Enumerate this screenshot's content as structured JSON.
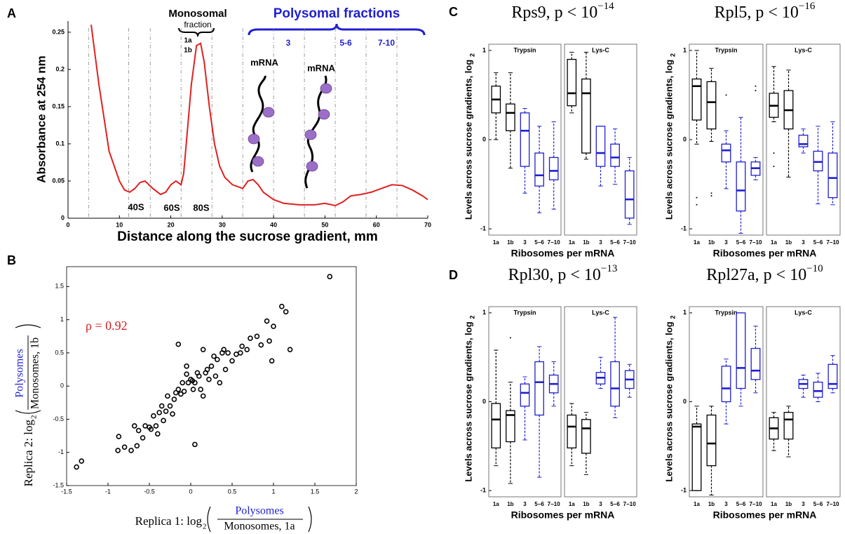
{
  "chart_data": [
    {
      "type": "line",
      "panel_label": "A",
      "x_label": "Distance along the sucrose gradient, mm",
      "y_label": "Absorbance at 254 nm",
      "xlim": [
        0,
        70
      ],
      "ylim": [
        0,
        0.265
      ],
      "xticks": [
        0,
        10,
        20,
        30,
        40,
        50,
        60,
        70
      ],
      "yticks": [
        0,
        0.05,
        0.1,
        0.15,
        0.2,
        0.25
      ],
      "color": "#e02020",
      "fraction_boundaries": [
        4,
        11.8,
        16,
        22,
        28,
        34,
        40,
        46,
        52,
        58,
        64
      ],
      "x": [
        4.5,
        6,
        8,
        10,
        11,
        12,
        13,
        14,
        15,
        16.5,
        18,
        19,
        20,
        21,
        22,
        22.5,
        23,
        24,
        25,
        25.8,
        26.5,
        27.5,
        28.5,
        29.5,
        30.5,
        32,
        34,
        35,
        36,
        37,
        38,
        40,
        42,
        45,
        48,
        50,
        52,
        53.5,
        55,
        57,
        59,
        61,
        63,
        65,
        67,
        69,
        70
      ],
      "values": [
        0.26,
        0.18,
        0.09,
        0.05,
        0.038,
        0.035,
        0.04,
        0.048,
        0.05,
        0.04,
        0.032,
        0.035,
        0.045,
        0.05,
        0.045,
        0.06,
        0.1,
        0.18,
        0.232,
        0.235,
        0.21,
        0.15,
        0.1,
        0.07,
        0.055,
        0.045,
        0.04,
        0.05,
        0.052,
        0.045,
        0.035,
        0.025,
        0.02,
        0.018,
        0.018,
        0.02,
        0.017,
        0.022,
        0.03,
        0.032,
        0.035,
        0.04,
        0.045,
        0.044,
        0.038,
        0.03,
        0.025
      ],
      "annotations": [
        "Monosomal",
        "fraction",
        "1a",
        "1b",
        "40S",
        "60S",
        "80S",
        "Polysomal fractions",
        "3",
        "5-6",
        "7-10",
        "mRNA",
        "mRNA"
      ]
    },
    {
      "type": "scatter",
      "panel_label": "B",
      "x_label": "Replica 1: log",
      "x_label_sub": "2",
      "x_label_num": "Polysomes",
      "x_label_den": "Monosomes, 1a",
      "y_label": "Replica 2: log",
      "y_label_sub": "2",
      "y_label_num": "Polysomes",
      "y_label_den": "Monosomes, 1b",
      "annotation": "ρ = 0.92",
      "xlim": [
        -1.5,
        2
      ],
      "ylim": [
        -1.5,
        1.8
      ],
      "xticks": [
        -1.5,
        -1,
        -0.5,
        0,
        0.5,
        1,
        1.5,
        2
      ],
      "yticks": [
        -1.5,
        -1,
        -0.5,
        0,
        0.5,
        1,
        1.5
      ],
      "x": [
        -1.38,
        -1.32,
        -0.88,
        -0.87,
        -0.8,
        -0.72,
        -0.68,
        -0.65,
        -0.63,
        -0.58,
        -0.55,
        -0.5,
        -0.48,
        -0.45,
        -0.42,
        -0.4,
        -0.38,
        -0.35,
        -0.33,
        -0.3,
        -0.28,
        -0.25,
        -0.22,
        -0.2,
        -0.18,
        -0.15,
        -0.15,
        -0.12,
        -0.1,
        -0.08,
        -0.05,
        -0.05,
        -0.03,
        0,
        0.02,
        0.03,
        0.05,
        0.05,
        0.08,
        0.1,
        0.12,
        0.15,
        0.15,
        0.18,
        0.2,
        0.22,
        0.25,
        0.28,
        0.3,
        0.32,
        0.35,
        0.38,
        0.4,
        0.42,
        0.45,
        0.5,
        0.55,
        0.6,
        0.62,
        0.68,
        0.72,
        0.8,
        0.85,
        0.92,
        0.95,
        0.98,
        1.0,
        1.1,
        1.15,
        1.2,
        1.68
      ],
      "values": [
        -1.22,
        -1.13,
        -0.97,
        -0.76,
        -0.92,
        -0.97,
        -0.6,
        -0.9,
        -0.67,
        -0.78,
        -0.6,
        -0.62,
        -0.65,
        -0.45,
        -0.6,
        -0.72,
        -0.4,
        -0.3,
        -0.52,
        -0.38,
        -0.15,
        -0.3,
        -0.42,
        -0.2,
        -0.1,
        0.63,
        -0.05,
        -0.12,
        0.05,
        -0.08,
        0.3,
        0.18,
        0.05,
        0.1,
        0.08,
        -0.05,
        0.05,
        -0.88,
        0.2,
        0.15,
        -0.05,
        -0.15,
        0.55,
        0.2,
        0.25,
        0.1,
        0.3,
        0.45,
        0.15,
        0.4,
        0.05,
        0.5,
        0.55,
        0.25,
        0.5,
        0.38,
        0.48,
        0.5,
        0.6,
        0.55,
        0.72,
        0.75,
        0.62,
        0.98,
        0.68,
        0.38,
        0.9,
        1.2,
        1.12,
        0.55,
        1.65
      ]
    },
    {
      "type": "box",
      "panel_label": "C",
      "title": "Rps9, p < 10",
      "title_exponent": "−14",
      "y_label": "Levels across sucrose gradients, log",
      "y_label_sub": "2",
      "x_label": "Ribosomes per mRNA",
      "ylim": [
        -1.07,
        1.07
      ],
      "yticks": [
        -1,
        0,
        1
      ],
      "categories": [
        "1a",
        "1b",
        "3",
        "5−6",
        "7−10"
      ],
      "box_colors": [
        "#000000",
        "#000000",
        "#1f1fd0",
        "#1f1fd0",
        "#1f1fd0"
      ],
      "subpanels": [
        {
          "name": "Trypsin",
          "boxes": [
            {
              "low": 0.0,
              "q1": 0.3,
              "median": 0.45,
              "q3": 0.6,
              "high": 0.75
            },
            {
              "low": -0.32,
              "q1": 0.1,
              "median": 0.3,
              "q3": 0.4,
              "high": 0.75
            },
            {
              "low": -0.6,
              "q1": -0.3,
              "median": 0.1,
              "q3": 0.3,
              "high": 0.35
            },
            {
              "low": -0.82,
              "q1": -0.52,
              "median": -0.4,
              "q3": -0.15,
              "high": 0.15
            },
            {
              "low": -0.78,
              "q1": -0.45,
              "median": -0.35,
              "q3": -0.2,
              "high": 0.2
            }
          ]
        },
        {
          "name": "Lys-C",
          "boxes": [
            {
              "low": 0.3,
              "q1": 0.38,
              "median": 0.52,
              "q3": 0.9,
              "high": 0.98
            },
            {
              "low": -0.22,
              "q1": -0.15,
              "median": 0.52,
              "q3": 0.68,
              "high": 0.98
            },
            {
              "low": -0.52,
              "q1": -0.3,
              "median": -0.15,
              "q3": 0.15,
              "high": 0.15
            },
            {
              "low": -0.5,
              "q1": -0.3,
              "median": -0.2,
              "q3": -0.05,
              "high": 0.12
            },
            {
              "low": -0.95,
              "q1": -0.88,
              "median": -0.67,
              "q3": -0.35,
              "high": -0.2
            }
          ]
        }
      ]
    },
    {
      "type": "box",
      "title": "Rpl5, p < 10",
      "title_exponent": "−16",
      "y_label": "Levels across sucrose gradients, log",
      "y_label_sub": "2",
      "x_label": "Ribosomes per mRNA",
      "ylim": [
        -1.07,
        1.07
      ],
      "yticks": [
        -1,
        0,
        1
      ],
      "categories": [
        "1a",
        "1b",
        "3",
        "5−6",
        "7−10"
      ],
      "box_colors": [
        "#000000",
        "#000000",
        "#1f1fd0",
        "#1f1fd0",
        "#1f1fd0"
      ],
      "subpanels": [
        {
          "name": "Trypsin",
          "boxes": [
            {
              "low": -0.05,
              "q1": 0.22,
              "median": 0.6,
              "q3": 0.68,
              "high": 1.0,
              "outliers": [
                -0.65,
                -0.73
              ]
            },
            {
              "low": -0.02,
              "q1": 0.12,
              "median": 0.42,
              "q3": 0.65,
              "high": 0.8,
              "outliers": [
                -0.6,
                -0.63
              ]
            },
            {
              "low": -0.55,
              "q1": -0.25,
              "median": -0.12,
              "q3": -0.05,
              "high": 0.1,
              "outliers": [
                0.5
              ]
            },
            {
              "low": -1.05,
              "q1": -0.8,
              "median": -0.57,
              "q3": -0.25,
              "high": 0.25
            },
            {
              "low": -0.45,
              "q1": -0.4,
              "median": -0.32,
              "q3": -0.25,
              "high": -0.2,
              "outliers": [
                0.55,
                0.6
              ]
            }
          ]
        },
        {
          "name": "Lys-C",
          "boxes": [
            {
              "low": 0.2,
              "q1": 0.25,
              "median": 0.38,
              "q3": 0.52,
              "high": 0.82,
              "outliers": [
                -0.15,
                -0.3
              ]
            },
            {
              "low": -0.42,
              "q1": 0.12,
              "median": 0.33,
              "q3": 0.55,
              "high": 0.78
            },
            {
              "low": -0.15,
              "q1": -0.08,
              "median": -0.05,
              "q3": 0.05,
              "high": 0.12
            },
            {
              "low": -0.72,
              "q1": -0.35,
              "median": -0.25,
              "q3": -0.13,
              "high": 0.15
            },
            {
              "low": -0.73,
              "q1": -0.65,
              "median": -0.43,
              "q3": -0.15,
              "high": 0.2
            }
          ]
        }
      ]
    },
    {
      "type": "box",
      "panel_label": "D",
      "title": "Rpl30, p < 10",
      "title_exponent": "−13",
      "y_label": "Levels across sucrose gradients, log",
      "y_label_sub": "2",
      "x_label": "Ribosomes per mRNA",
      "ylim": [
        -1.07,
        1.07
      ],
      "yticks": [
        -1,
        0,
        1
      ],
      "categories": [
        "1a",
        "1b",
        "3",
        "5−6",
        "7−10"
      ],
      "box_colors": [
        "#000000",
        "#000000",
        "#1f1fd0",
        "#1f1fd0",
        "#1f1fd0"
      ],
      "subpanels": [
        {
          "name": "Trypsin",
          "boxes": [
            {
              "low": -0.72,
              "q1": -0.52,
              "median": -0.2,
              "q3": -0.02,
              "high": 0.58
            },
            {
              "low": -0.92,
              "q1": -0.45,
              "median": -0.15,
              "q3": -0.1,
              "high": 0.22,
              "outliers": [
                0.72
              ]
            },
            {
              "low": -0.43,
              "q1": -0.05,
              "median": 0.1,
              "q3": 0.2,
              "high": 0.28
            },
            {
              "low": -0.85,
              "q1": -0.15,
              "median": 0.22,
              "q3": 0.45,
              "high": 0.62
            },
            {
              "low": -0.05,
              "q1": 0.1,
              "median": 0.2,
              "q3": 0.3,
              "high": 0.45
            }
          ]
        },
        {
          "name": "Lys-C",
          "boxes": [
            {
              "low": -0.72,
              "q1": -0.52,
              "median": -0.28,
              "q3": -0.15,
              "high": -0.02
            },
            {
              "low": -0.82,
              "q1": -0.58,
              "median": -0.3,
              "q3": -0.2,
              "high": -0.12
            },
            {
              "low": 0.15,
              "q1": 0.2,
              "median": 0.27,
              "q3": 0.33,
              "high": 0.5
            },
            {
              "low": -0.18,
              "q1": -0.05,
              "median": 0.15,
              "q3": 0.45,
              "high": 0.95
            },
            {
              "low": 0.05,
              "q1": 0.15,
              "median": 0.25,
              "q3": 0.35,
              "high": 0.42
            }
          ]
        }
      ]
    },
    {
      "type": "box",
      "title": "Rpl27a, p < 10",
      "title_exponent": "−10",
      "y_label": "Levels across sucrose gradients, log",
      "y_label_sub": "2",
      "x_label": "Ribosomes per mRNA",
      "ylim": [
        -1.07,
        1.07
      ],
      "yticks": [
        -1,
        0,
        1
      ],
      "categories": [
        "1a",
        "1b",
        "3",
        "5−6",
        "7−10"
      ],
      "box_colors": [
        "#000000",
        "#000000",
        "#1f1fd0",
        "#1f1fd0",
        "#1f1fd0"
      ],
      "subpanels": [
        {
          "name": "Trypsin",
          "boxes": [
            {
              "low": -1.0,
              "q1": -1.0,
              "median": -0.28,
              "q3": -0.25,
              "high": -0.05
            },
            {
              "low": -1.05,
              "q1": -0.72,
              "median": -0.47,
              "q3": -0.15,
              "high": -0.05
            },
            {
              "low": -0.25,
              "q1": 0.0,
              "median": 0.15,
              "q3": 0.4,
              "high": 0.48
            },
            {
              "low": -0.05,
              "q1": 0.15,
              "median": 0.38,
              "q3": 1.0,
              "high": 1.0
            },
            {
              "low": 0.1,
              "q1": 0.25,
              "median": 0.35,
              "q3": 0.6,
              "high": 0.85
            }
          ]
        },
        {
          "name": "Lys-C",
          "boxes": [
            {
              "low": -0.55,
              "q1": -0.42,
              "median": -0.3,
              "q3": -0.18,
              "high": -0.12
            },
            {
              "low": -0.62,
              "q1": -0.42,
              "median": -0.2,
              "q3": -0.12,
              "high": -0.05
            },
            {
              "low": 0.05,
              "q1": 0.15,
              "median": 0.2,
              "q3": 0.25,
              "high": 0.3
            },
            {
              "low": 0.0,
              "q1": 0.05,
              "median": 0.12,
              "q3": 0.22,
              "high": 0.32
            },
            {
              "low": 0.1,
              "q1": 0.15,
              "median": 0.2,
              "q3": 0.42,
              "high": 0.52
            }
          ]
        }
      ]
    }
  ]
}
